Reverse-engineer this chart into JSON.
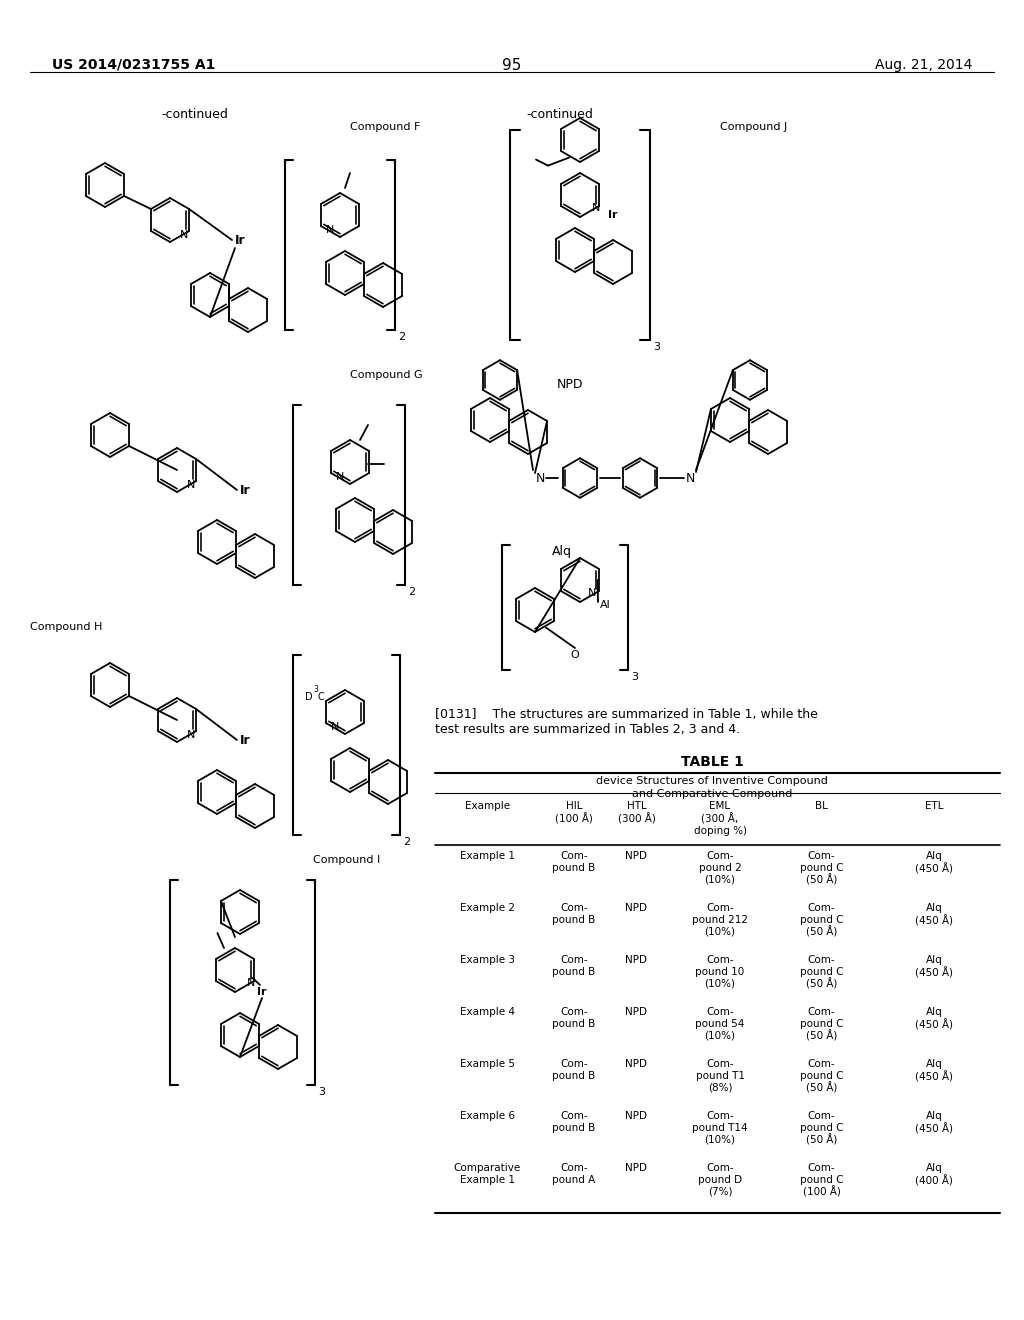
{
  "page_number": "95",
  "patent_number": "US 2014/0231755 A1",
  "patent_date": "Aug. 21, 2014",
  "background_color": "#ffffff",
  "continued_left": "-continued",
  "continued_right": "-continued",
  "compound_F_label": "Compound F",
  "compound_G_label": "Compound G",
  "compound_H_label": "Compound H",
  "compound_I_label": "Compound I",
  "compound_J_label": "Compound J",
  "npd_label": "NPD",
  "alq_label": "Alq",
  "paragraph": "[0131]    The structures are summarized in Table 1, while the\ntest results are summarized in Tables 2, 3 and 4.",
  "table_title": "TABLE 1",
  "table_subtitle1": "device Structures of Inventive Compound",
  "table_subtitle2": "and Comparative Compound",
  "col_headers": [
    "Example",
    "HIL\n(100 Å)",
    "HTL\n(300 Å)",
    "EML\n(300 Å,\ndoping %)",
    "BL",
    "ETL"
  ],
  "rows": [
    [
      "Example 1",
      "Com-\npound B",
      "NPD",
      "Com-\npound 2\n(10%)",
      "Com-\npound C\n(50 Å)",
      "Alq\n(450 Å)"
    ],
    [
      "Example 2",
      "Com-\npound B",
      "NPD",
      "Com-\npound 212\n(10%)",
      "Com-\npound C\n(50 Å)",
      "Alq\n(450 Å)"
    ],
    [
      "Example 3",
      "Com-\npound B",
      "NPD",
      "Com-\npound 10\n(10%)",
      "Com-\npound C\n(50 Å)",
      "Alq\n(450 Å)"
    ],
    [
      "Example 4",
      "Com-\npound B",
      "NPD",
      "Com-\npound 54\n(10%)",
      "Com-\npound C\n(50 Å)",
      "Alq\n(450 Å)"
    ],
    [
      "Example 5",
      "Com-\npound B",
      "NPD",
      "Com-\npound T1\n(8%)",
      "Com-\npound C\n(50 Å)",
      "Alq\n(450 Å)"
    ],
    [
      "Example 6",
      "Com-\npound B",
      "NPD",
      "Com-\npound T14\n(10%)",
      "Com-\npound C\n(50 Å)",
      "Alq\n(450 Å)"
    ],
    [
      "Comparative\nExample 1",
      "Com-\npound A",
      "NPD",
      "Com-\npound D\n(7%)",
      "Com-\npound C\n(100 Å)",
      "Alq\n(400 Å)"
    ]
  ]
}
